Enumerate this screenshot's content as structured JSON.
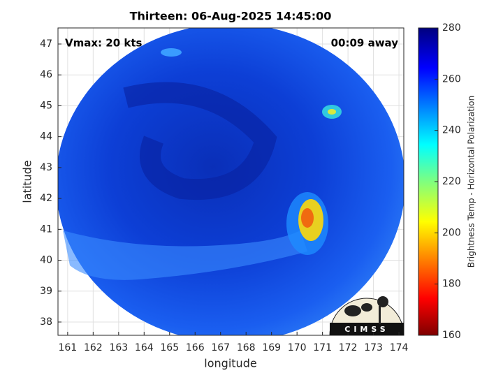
{
  "title": "Thirteen: 06-Aug-2025 14:45:00",
  "annotations": {
    "vmax": "Vmax: 20 kts",
    "away": "00:09 away"
  },
  "xlabel": "longitude",
  "ylabel": "latitude",
  "xlim": [
    160.62,
    174.19
  ],
  "ylim": [
    37.57,
    47.52
  ],
  "xticks": [
    161,
    162,
    163,
    164,
    165,
    166,
    167,
    168,
    169,
    170,
    171,
    172,
    173,
    174
  ],
  "yticks": [
    38,
    39,
    40,
    41,
    42,
    43,
    44,
    45,
    46,
    47
  ],
  "grid": true,
  "colorbar": {
    "label": "Brightness Temp - Horizontal Polarization",
    "lim": [
      160,
      280
    ],
    "ticks": [
      160,
      180,
      200,
      220,
      240,
      260,
      280
    ]
  },
  "logo": "CIMSS"
}
